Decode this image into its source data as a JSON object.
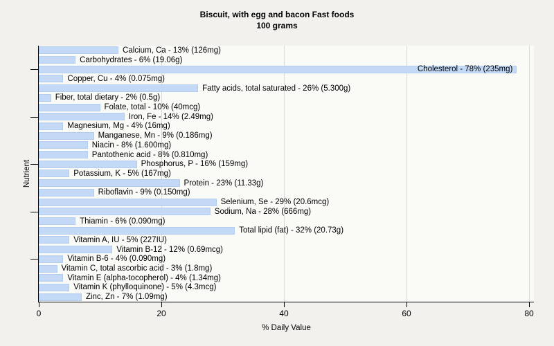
{
  "colors": {
    "page_background": "#f2f1ee",
    "plot_background": "#fafaf7",
    "gridline": "#d8d8d4",
    "axis": "#000000",
    "text": "#000000",
    "bar_fill": "#c3d9f6",
    "bar_border": "#b3cdf0"
  },
  "chart_data": {
    "type": "bar",
    "orientation": "horizontal",
    "title_lines": [
      "Biscuit, with egg and bacon Fast foods",
      "100 grams"
    ],
    "xlabel": "% Daily Value",
    "ylabel": "Nutrient",
    "xlim": [
      0,
      80
    ],
    "x_ticks": [
      0,
      20,
      40,
      60,
      80
    ],
    "y_tick_row_indices": [
      2,
      7,
      12,
      17,
      22
    ],
    "grid": "vertical gridlines at 20, 40, 60, 80 behind bars",
    "legend": "none",
    "categories": [
      "Calcium, Ca",
      "Carbohydrates",
      "Cholesterol",
      "Copper, Cu",
      "Fatty acids, total saturated",
      "Fiber, total dietary",
      "Folate, total",
      "Iron, Fe",
      "Magnesium, Mg",
      "Manganese, Mn",
      "Niacin",
      "Pantothenic acid",
      "Phosphorus, P",
      "Potassium, K",
      "Protein",
      "Riboflavin",
      "Selenium, Se",
      "Sodium, Na",
      "Thiamin",
      "Total lipid (fat)",
      "Vitamin A, IU",
      "Vitamin B-12",
      "Vitamin B-6",
      "Vitamin C, total ascorbic acid",
      "Vitamin E (alpha-tocopherol)",
      "Vitamin K (phylloquinone)",
      "Zinc, Zn"
    ],
    "values": [
      13,
      6,
      78,
      4,
      26,
      2,
      10,
      14,
      4,
      9,
      8,
      8,
      16,
      5,
      23,
      9,
      29,
      28,
      6,
      32,
      5,
      12,
      4,
      3,
      4,
      5,
      7
    ],
    "amounts": [
      "126mg",
      "19.06g",
      "235mg",
      "0.075mg",
      "5.300g",
      "0.5g",
      "40mcg",
      "2.49mg",
      "16mg",
      "0.186mg",
      "1.600mg",
      "0.810mg",
      "159mg",
      "167mg",
      "11.33g",
      "0.150mg",
      "20.6mcg",
      "666mg",
      "0.090mg",
      "20.73g",
      "227IU",
      "0.69mcg",
      "0.090mg",
      "1.8mg",
      "1.34mg",
      "4.3mcg",
      "1.09mg"
    ],
    "bar_labels": [
      "Calcium, Ca - 13% (126mg)",
      "Carbohydrates - 6% (19.06g)",
      "Cholesterol - 78% (235mg)",
      "Copper, Cu - 4% (0.075mg)",
      "Fatty acids, total saturated - 26% (5.300g)",
      "Fiber, total dietary - 2% (0.5g)",
      "Folate, total - 10% (40mcg)",
      "Iron, Fe - 14% (2.49mg)",
      "Magnesium, Mg - 4% (16mg)",
      "Manganese, Mn - 9% (0.186mg)",
      "Niacin - 8% (1.600mg)",
      "Pantothenic acid - 8% (0.810mg)",
      "Phosphorus, P - 16% (159mg)",
      "Potassium, K - 5% (167mg)",
      "Protein - 23% (11.33g)",
      "Riboflavin - 9% (0.150mg)",
      "Selenium, Se - 29% (20.6mcg)",
      "Sodium, Na - 28% (666mg)",
      "Thiamin - 6% (0.090mg)",
      "Total lipid (fat) - 32% (20.73g)",
      "Vitamin A, IU - 5% (227IU)",
      "Vitamin B-12 - 12% (0.69mcg)",
      "Vitamin B-6 - 4% (0.090mg)",
      "Vitamin C, total ascorbic acid - 3% (1.8mg)",
      "Vitamin E (alpha-tocopherol) - 4% (1.34mg)",
      "Vitamin K (phylloquinone) - 5% (4.3mcg)",
      "Zinc, Zn - 7% (1.09mg)"
    ],
    "inside_label_indices": [
      2
    ]
  }
}
